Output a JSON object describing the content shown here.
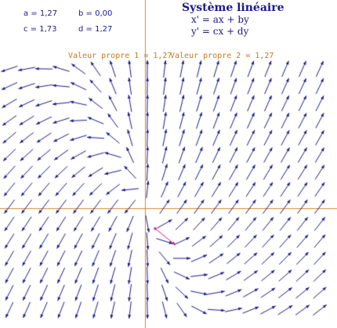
{
  "header": {
    "title": "Système linéaire",
    "equations": [
      "x' = ax + by",
      "y' = cx + dy"
    ]
  },
  "params": [
    {
      "name": "a",
      "value": 1.27,
      "label": "a = 1,27"
    },
    {
      "name": "b",
      "value": 0.0,
      "label": "b = 0,00"
    },
    {
      "name": "c",
      "value": 1.73,
      "label": "c = 1,73"
    },
    {
      "name": "d",
      "value": 1.27,
      "label": "d = 1,27"
    }
  ],
  "eigenvalues": {
    "label1": "Valeur propre 1 = 1,27",
    "label2": "Valeur propre 2 = 1,27",
    "lambda1": 1.27,
    "lambda2": 1.27
  },
  "colors": {
    "axis": "#d08a30",
    "arrow": "#1a1a8a",
    "trajectory": "#cc2277",
    "text": "#1a1a8a",
    "eigen_text": "#c87820",
    "background": "#ffffff"
  }
}
